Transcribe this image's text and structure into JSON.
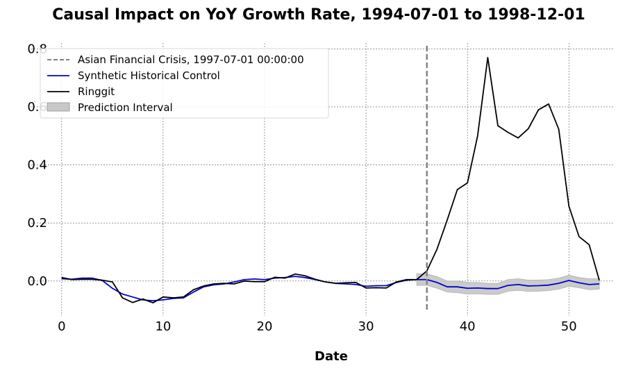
{
  "chart_data": {
    "type": "line",
    "title": "Causal Impact on YoY Growth Rate, 1994-07-01 to 1998-12-01",
    "xlabel": "Date",
    "ylabel": "",
    "xlim": [
      -3,
      54.5
    ],
    "ylim": [
      -0.12,
      0.82
    ],
    "x_ticks": [
      0,
      10,
      20,
      30,
      40,
      50
    ],
    "y_ticks": [
      0.0,
      0.2,
      0.4,
      0.6,
      0.8
    ],
    "x_tick_labels": [
      "0",
      "10",
      "20",
      "30",
      "40",
      "50"
    ],
    "y_tick_labels": [
      "0.0",
      "0.2",
      "0.4",
      "0.6",
      "0.8"
    ],
    "grid": true,
    "legend_position": "top-left",
    "intervention": {
      "x": 36,
      "label": "Asian Financial Crisis, 1997-07-01 00:00:00",
      "color": "#808080"
    },
    "series": [
      {
        "name": "Synthetic Historical Control",
        "color": "#0000cc",
        "x": [
          0,
          1,
          2,
          3,
          4,
          5,
          6,
          7,
          8,
          9,
          10,
          11,
          12,
          13,
          14,
          15,
          16,
          17,
          18,
          19,
          20,
          21,
          22,
          23,
          24,
          25,
          26,
          27,
          28,
          29,
          30,
          31,
          32,
          33,
          34,
          35,
          36,
          37,
          38,
          39,
          40,
          41,
          42,
          43,
          44,
          45,
          46,
          47,
          48,
          49,
          50,
          51,
          52,
          53
        ],
        "y": [
          0.008,
          0.006,
          0.01,
          0.01,
          0.002,
          -0.025,
          -0.045,
          -0.055,
          -0.065,
          -0.068,
          -0.065,
          -0.06,
          -0.058,
          -0.038,
          -0.02,
          -0.013,
          -0.01,
          -0.003,
          0.005,
          0.007,
          0.005,
          0.01,
          0.012,
          0.016,
          0.012,
          0.005,
          -0.003,
          -0.008,
          -0.01,
          -0.012,
          -0.018,
          -0.016,
          -0.016,
          -0.005,
          0.003,
          0.005,
          0.005,
          -0.005,
          -0.02,
          -0.02,
          -0.025,
          -0.024,
          -0.026,
          -0.026,
          -0.015,
          -0.012,
          -0.017,
          -0.016,
          -0.014,
          -0.008,
          0.002,
          -0.006,
          -0.012,
          -0.01
        ]
      },
      {
        "name": "Ringgit",
        "color": "#000000",
        "x": [
          0,
          1,
          2,
          3,
          4,
          5,
          6,
          7,
          8,
          9,
          10,
          11,
          12,
          13,
          14,
          15,
          16,
          17,
          18,
          19,
          20,
          21,
          22,
          23,
          24,
          25,
          26,
          27,
          28,
          29,
          30,
          31,
          32,
          33,
          34,
          35,
          36,
          37,
          38,
          39,
          40,
          41,
          42,
          43,
          44,
          45,
          46,
          47,
          48,
          49,
          50,
          51,
          52,
          53
        ],
        "y": [
          0.012,
          0.005,
          0.006,
          0.006,
          0.003,
          -0.003,
          -0.058,
          -0.074,
          -0.062,
          -0.075,
          -0.055,
          -0.058,
          -0.055,
          -0.03,
          -0.017,
          -0.01,
          -0.008,
          -0.01,
          0.0,
          -0.002,
          -0.002,
          0.013,
          0.01,
          0.024,
          0.018,
          0.006,
          -0.003,
          -0.008,
          -0.006,
          -0.005,
          -0.024,
          -0.023,
          -0.024,
          -0.003,
          0.005,
          0.005,
          0.035,
          0.11,
          0.21,
          0.315,
          0.338,
          0.5,
          0.77,
          0.535,
          0.512,
          0.493,
          0.525,
          0.59,
          0.61,
          0.523,
          0.258,
          0.153,
          0.125,
          0.002
        ]
      }
    ],
    "prediction_interval": {
      "name": "Prediction Interval",
      "color": "#c8c8c8",
      "x": [
        35,
        36,
        37,
        38,
        39,
        40,
        41,
        42,
        43,
        44,
        45,
        46,
        47,
        48,
        49,
        50,
        51,
        52,
        53
      ],
      "upper": [
        0.025,
        0.025,
        0.015,
        0.0,
        0.0,
        -0.005,
        -0.005,
        -0.008,
        -0.008,
        0.005,
        0.008,
        0.003,
        0.003,
        0.005,
        0.01,
        0.02,
        0.012,
        0.008,
        0.008
      ],
      "lower": [
        -0.015,
        -0.015,
        -0.025,
        -0.038,
        -0.04,
        -0.045,
        -0.044,
        -0.046,
        -0.046,
        -0.035,
        -0.032,
        -0.036,
        -0.035,
        -0.033,
        -0.028,
        -0.018,
        -0.023,
        -0.03,
        -0.028
      ]
    }
  }
}
